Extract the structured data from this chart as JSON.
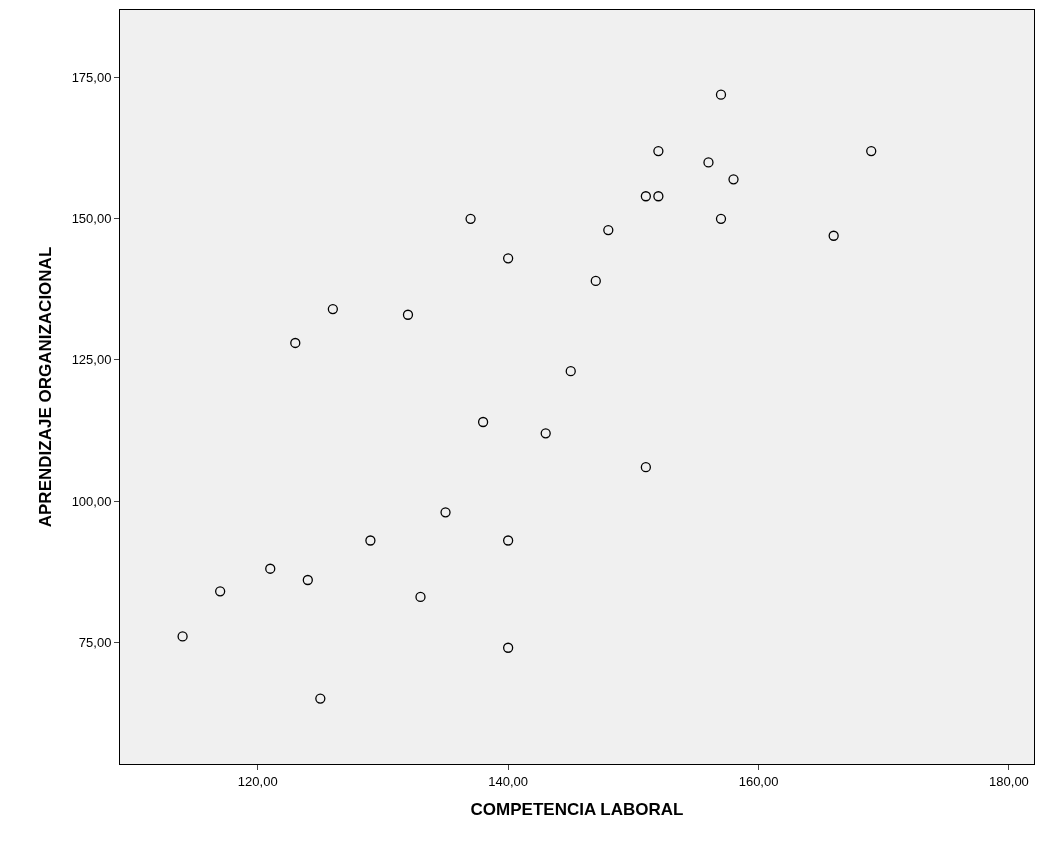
{
  "chart_data": {
    "type": "scatter",
    "xlabel": "COMPETENCIA LABORAL",
    "ylabel": "APRENDIZAJE ORGANIZACIONAL",
    "x": [
      157,
      152,
      156,
      158,
      169,
      151,
      152,
      157,
      137,
      148,
      166,
      140,
      147,
      126,
      132,
      123,
      145,
      138,
      143,
      151,
      135,
      129,
      140,
      121,
      124,
      117,
      133,
      114,
      140,
      125
    ],
    "series": [
      {
        "color": "#000000",
        "values": [
          172,
          162,
          160,
          157,
          162,
          154,
          154,
          150,
          150,
          148,
          147,
          143,
          139,
          134,
          133,
          128,
          123,
          114,
          112,
          106,
          98,
          93,
          93,
          88,
          86,
          84,
          83,
          76,
          74,
          65
        ]
      }
    ],
    "xlim": [
      109,
      182
    ],
    "ylim": [
      53.4,
      187
    ],
    "xticks": [
      {
        "value": 120,
        "label": "120,00"
      },
      {
        "value": 140,
        "label": "140,00"
      },
      {
        "value": 160,
        "label": "160,00"
      },
      {
        "value": 180,
        "label": "180,00"
      }
    ],
    "yticks": [
      {
        "value": 75,
        "label": "75,00"
      },
      {
        "value": 100,
        "label": "100,00"
      },
      {
        "value": 125,
        "label": "125,00"
      },
      {
        "value": 150,
        "label": "150,00"
      },
      {
        "value": 175,
        "label": "175,00"
      }
    ],
    "grid": false,
    "marker": "circle"
  }
}
